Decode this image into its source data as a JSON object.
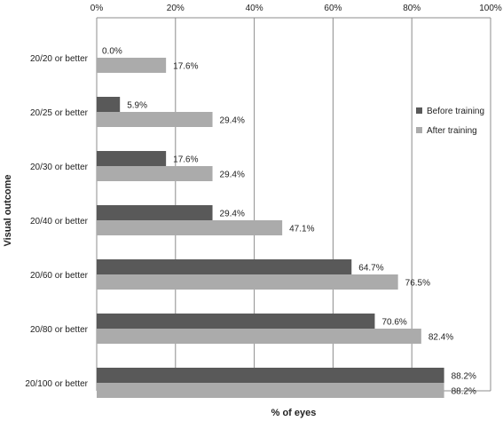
{
  "chart_data": {
    "type": "bar",
    "orientation": "horizontal",
    "title": "",
    "xlabel": "% of eyes",
    "ylabel": "Visual outcome",
    "xlim": [
      0,
      100
    ],
    "x_ticks": [
      "0%",
      "20%",
      "40%",
      "60%",
      "80%",
      "100%"
    ],
    "x_axis_position": "top",
    "grid": true,
    "legend_position": "right",
    "categories": [
      "20/20 or better",
      "20/25 or better",
      "20/30 or better",
      "20/40 or better",
      "20/60 or better",
      "20/80 or better",
      "20/100 or better"
    ],
    "series": [
      {
        "name": "Before training",
        "color": "#595959",
        "values": [
          0.0,
          5.9,
          17.6,
          29.4,
          64.7,
          70.6,
          88.2
        ],
        "labels": [
          "0.0%",
          "5.9%",
          "17.6%",
          "29.4%",
          "64.7%",
          "70.6%",
          "88.2%"
        ]
      },
      {
        "name": "After training",
        "color": "#ababab",
        "values": [
          17.6,
          29.4,
          29.4,
          47.1,
          76.5,
          82.4,
          88.2
        ],
        "labels": [
          "17.6%",
          "29.4%",
          "29.4%",
          "47.1%",
          "76.5%",
          "82.4%",
          "88.2%"
        ]
      }
    ]
  }
}
